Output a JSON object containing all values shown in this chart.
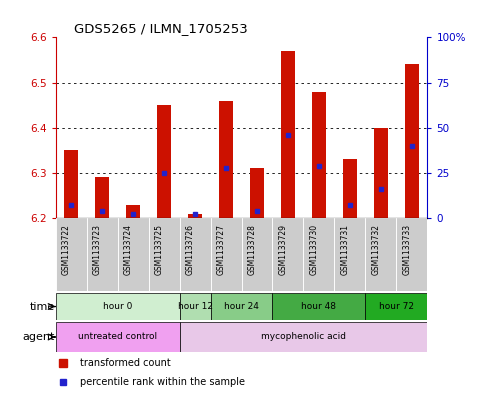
{
  "title": "GDS5265 / ILMN_1705253",
  "samples": [
    "GSM1133722",
    "GSM1133723",
    "GSM1133724",
    "GSM1133725",
    "GSM1133726",
    "GSM1133727",
    "GSM1133728",
    "GSM1133729",
    "GSM1133730",
    "GSM1133731",
    "GSM1133732",
    "GSM1133733"
  ],
  "bar_tops": [
    6.35,
    6.29,
    6.23,
    6.45,
    6.21,
    6.46,
    6.31,
    6.57,
    6.48,
    6.33,
    6.4,
    6.54
  ],
  "bar_base": 6.2,
  "blue_values": [
    6.23,
    6.215,
    6.21,
    6.3,
    6.21,
    6.31,
    6.215,
    6.385,
    6.315,
    6.23,
    6.265,
    6.36
  ],
  "ylim": [
    6.2,
    6.6
  ],
  "left_ticks": [
    6.2,
    6.3,
    6.4,
    6.5,
    6.6
  ],
  "right_ticks": [
    0,
    25,
    50,
    75,
    100
  ],
  "right_labels": [
    "0",
    "25",
    "50",
    "75",
    "100%"
  ],
  "time_groups": [
    {
      "label": "hour 0",
      "start": 0,
      "end": 4,
      "color": "#d0eed0"
    },
    {
      "label": "hour 12",
      "start": 4,
      "end": 5,
      "color": "#b0deb0"
    },
    {
      "label": "hour 24",
      "start": 5,
      "end": 7,
      "color": "#88cc88"
    },
    {
      "label": "hour 48",
      "start": 7,
      "end": 10,
      "color": "#44aa44"
    },
    {
      "label": "hour 72",
      "start": 10,
      "end": 12,
      "color": "#22aa22"
    }
  ],
  "agent_groups": [
    {
      "label": "untreated control",
      "start": 0,
      "end": 4,
      "color": "#f0a0f0"
    },
    {
      "label": "mycophenolic acid",
      "start": 4,
      "end": 12,
      "color": "#e8c8e8"
    }
  ],
  "bar_color": "#cc1100",
  "blue_color": "#2222cc",
  "left_axis_color": "#cc0000",
  "right_axis_color": "#0000cc",
  "sample_box_color": "#cccccc",
  "grid_color": "black"
}
